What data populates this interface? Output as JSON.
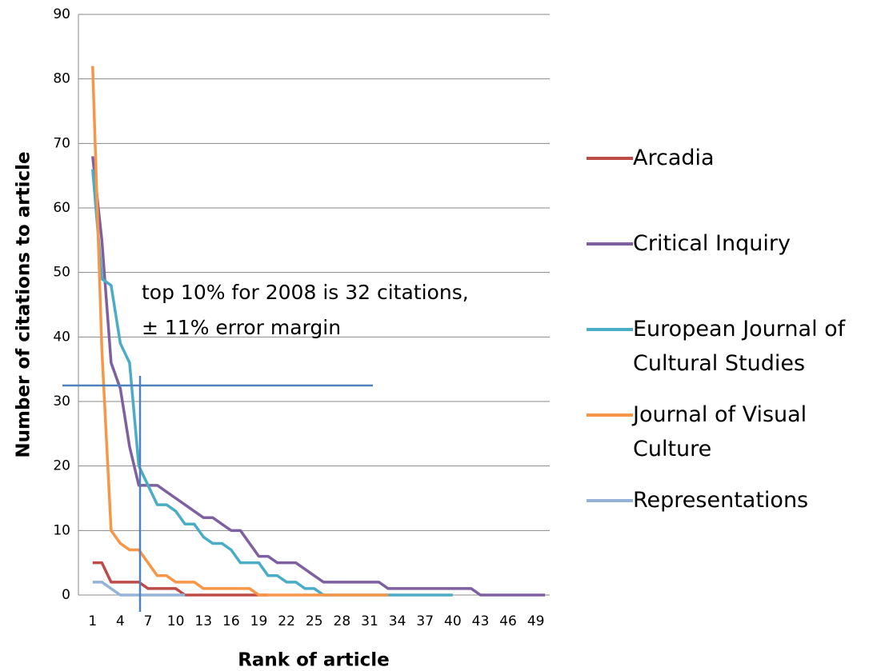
{
  "chart_data": {
    "type": "line",
    "xlabel": "Rank of article",
    "ylabel": "Number of citations to article",
    "annotation": [
      "top 10% for 2008 is 32 citations,",
      "± 11% error margin"
    ],
    "categories": [
      1,
      null,
      null,
      4,
      null,
      null,
      7,
      null,
      null,
      10,
      null,
      null,
      13,
      null,
      null,
      16,
      null,
      null,
      19,
      null,
      null,
      22,
      null,
      null,
      25,
      null,
      null,
      28,
      null,
      null,
      31,
      null,
      null,
      34,
      null,
      null,
      37,
      null,
      null,
      40,
      null,
      null,
      43,
      null,
      null,
      46,
      null,
      null,
      49,
      null
    ],
    "ylim": [
      0,
      90
    ],
    "yticks": [
      0,
      10,
      20,
      30,
      40,
      50,
      60,
      70,
      80,
      90
    ],
    "grid": true,
    "series": [
      {
        "name": "Arcadia",
        "color": "#be4b48",
        "values": [
          5,
          5,
          2,
          2,
          2,
          2,
          1,
          1,
          1,
          1,
          0,
          0,
          0,
          0,
          0,
          0,
          0,
          0,
          0,
          0,
          null,
          null,
          null,
          null,
          null,
          null,
          null,
          null,
          null,
          null,
          null,
          null,
          null,
          null,
          null,
          null,
          null,
          null,
          null,
          null,
          null,
          null,
          null,
          null,
          null,
          null,
          null,
          null,
          null,
          null
        ]
      },
      {
        "name": "Critical Inquiry",
        "color": "#7e60a0",
        "values": [
          68,
          55,
          36,
          32,
          23,
          17,
          17,
          17,
          16,
          15,
          14,
          13,
          12,
          12,
          11,
          10,
          10,
          8,
          6,
          6,
          5,
          5,
          5,
          4,
          3,
          2,
          2,
          2,
          2,
          2,
          2,
          2,
          1,
          1,
          1,
          1,
          1,
          1,
          1,
          1,
          1,
          1,
          0,
          0,
          0,
          0,
          0,
          0,
          0,
          0
        ]
      },
      {
        "name": "European Journal of Cultural Studies",
        "color": "#4aacc6",
        "values": [
          66,
          49,
          48,
          39,
          36,
          20,
          17,
          14,
          14,
          13,
          11,
          11,
          9,
          8,
          8,
          7,
          5,
          5,
          5,
          3,
          3,
          2,
          2,
          1,
          1,
          0,
          0,
          0,
          0,
          0,
          0,
          0,
          0,
          0,
          0,
          0,
          0,
          0,
          0,
          0,
          null,
          null,
          null,
          null,
          null,
          null,
          null,
          null,
          null,
          null
        ]
      },
      {
        "name": "Journal of Visual Culture",
        "color": "#f79646",
        "values": [
          82,
          38,
          10,
          8,
          7,
          7,
          5,
          3,
          3,
          2,
          2,
          2,
          1,
          1,
          1,
          1,
          1,
          1,
          0,
          0,
          0,
          0,
          0,
          0,
          0,
          0,
          0,
          0,
          0,
          0,
          0,
          0,
          0,
          null,
          null,
          null,
          null,
          null,
          null,
          null,
          null,
          null,
          null,
          null,
          null,
          null,
          null,
          null,
          null,
          null
        ]
      },
      {
        "name": "Representations",
        "color": "#95b3d7",
        "values": [
          2,
          2,
          1,
          0,
          0,
          0,
          0,
          0,
          0,
          0,
          0,
          null,
          null,
          null,
          null,
          null,
          null,
          null,
          null,
          null,
          null,
          null,
          null,
          null,
          null,
          null,
          null,
          null,
          null,
          null,
          null,
          null,
          null,
          null,
          null,
          null,
          null,
          null,
          null,
          null,
          null,
          null,
          null,
          null,
          null,
          null,
          null,
          null,
          null,
          null
        ]
      }
    ]
  }
}
